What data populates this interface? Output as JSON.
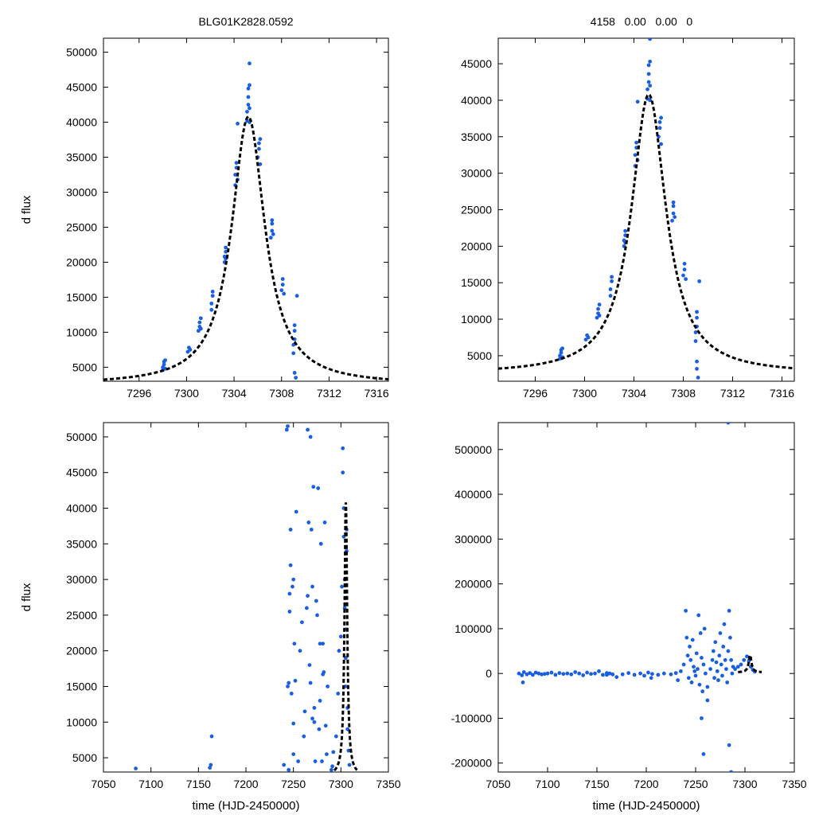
{
  "colors": {
    "points": "#1a5fe0",
    "model": "#000000"
  },
  "chart_data": [
    {
      "id": "top-left",
      "type": "scatter",
      "title": "BLG01K2828.0592",
      "xlabel": "",
      "ylabel": "d flux",
      "xlim": [
        7293,
        7317
      ],
      "ylim": [
        3000,
        52000
      ],
      "xticks": [
        7296,
        7300,
        7304,
        7308,
        7312,
        7316
      ],
      "yticks": [
        5000,
        10000,
        15000,
        20000,
        25000,
        30000,
        35000,
        40000,
        45000,
        50000
      ],
      "model": {
        "t0": 7305.2,
        "peak": 40800,
        "base": 2500,
        "width": 1.7,
        "x_range": [
          7293,
          7317
        ]
      },
      "x": [
        7298.0,
        7298.0,
        7298.1,
        7298.1,
        7298.2,
        7298.2,
        7300.1,
        7300.2,
        7300.3,
        7301.0,
        7301.1,
        7301.1,
        7301.2,
        7301.2,
        7302.1,
        7302.1,
        7302.2,
        7302.2,
        7303.2,
        7303.2,
        7303.3,
        7303.3,
        7303.3,
        7304.1,
        7304.1,
        7304.2,
        7304.2,
        7304.3,
        7304.3,
        7305.1,
        7305.1,
        7305.2,
        7305.2,
        7305.2,
        7305.3,
        7305.3,
        7305.3,
        7305.3,
        7306.0,
        7306.1,
        7306.1,
        7306.2,
        7306.2,
        7307.1,
        7307.2,
        7307.2,
        7307.2,
        7307.3,
        7308.0,
        7308.1,
        7308.1,
        7308.2,
        7309.0,
        7309.0,
        7309.1,
        7309.1,
        7309.1,
        7309.2,
        7309.3,
        7309.1
      ],
      "y": [
        4600,
        5000,
        5400,
        5800,
        6000,
        4800,
        7200,
        7800,
        7500,
        10200,
        10800,
        11400,
        12000,
        10500,
        13200,
        14100,
        15200,
        15800,
        20000,
        20800,
        21500,
        22100,
        20500,
        31000,
        32500,
        33500,
        34200,
        39800,
        31800,
        40200,
        41500,
        42500,
        43600,
        44800,
        45300,
        48400,
        40000,
        42000,
        35000,
        36200,
        37000,
        37600,
        34000,
        23500,
        24500,
        25500,
        26000,
        24000,
        16000,
        16800,
        17600,
        15500,
        7000,
        8200,
        9000,
        10200,
        11000,
        3500,
        15200,
        4200
      ]
    },
    {
      "id": "top-right",
      "type": "scatter",
      "title": "4158   0.00   0.00   0",
      "xlabel": "",
      "ylabel": "",
      "xlim": [
        7293,
        7317
      ],
      "ylim": [
        1500,
        48500
      ],
      "xticks": [
        7296,
        7300,
        7304,
        7308,
        7312,
        7316
      ],
      "yticks": [
        5000,
        10000,
        15000,
        20000,
        25000,
        30000,
        35000,
        40000,
        45000
      ],
      "model": {
        "t0": 7305.2,
        "peak": 40800,
        "base": 2500,
        "width": 1.7,
        "x_range": [
          7293,
          7317
        ]
      },
      "x": [
        7298.0,
        7298.0,
        7298.1,
        7298.1,
        7298.2,
        7298.2,
        7300.1,
        7300.2,
        7300.3,
        7301.0,
        7301.1,
        7301.1,
        7301.2,
        7301.2,
        7302.1,
        7302.1,
        7302.2,
        7302.2,
        7303.2,
        7303.2,
        7303.3,
        7303.3,
        7303.3,
        7304.1,
        7304.1,
        7304.2,
        7304.2,
        7304.3,
        7304.3,
        7305.1,
        7305.1,
        7305.2,
        7305.2,
        7305.2,
        7305.3,
        7305.3,
        7305.3,
        7305.3,
        7306.0,
        7306.1,
        7306.1,
        7306.2,
        7306.2,
        7307.1,
        7307.2,
        7307.2,
        7307.2,
        7307.3,
        7308.0,
        7308.1,
        7308.1,
        7308.2,
        7309.0,
        7309.0,
        7309.1,
        7309.1,
        7309.1,
        7309.2,
        7309.3,
        7309.1,
        7309.1
      ],
      "y": [
        4600,
        5000,
        5400,
        5800,
        6000,
        4800,
        7200,
        7800,
        7500,
        10200,
        10800,
        11400,
        12000,
        10500,
        13200,
        14100,
        15200,
        15800,
        20000,
        20800,
        21500,
        22100,
        20500,
        31000,
        32500,
        33500,
        34200,
        39800,
        31800,
        40200,
        41500,
        42500,
        43600,
        44800,
        45300,
        48400,
        40000,
        42000,
        35000,
        36200,
        37000,
        37600,
        34000,
        23500,
        24500,
        25500,
        26000,
        24000,
        16000,
        16800,
        17600,
        15500,
        7000,
        8200,
        9000,
        10200,
        11000,
        2000,
        15200,
        4200,
        3200
      ]
    },
    {
      "id": "bottom-left",
      "type": "scatter",
      "title": "",
      "xlabel": "time (HJD-2450000)",
      "ylabel": "d flux",
      "xlim": [
        7050,
        7350
      ],
      "ylim": [
        3000,
        52000
      ],
      "xticks": [
        7050,
        7100,
        7150,
        7200,
        7250,
        7300,
        7350
      ],
      "yticks": [
        5000,
        10000,
        15000,
        20000,
        25000,
        30000,
        35000,
        40000,
        45000,
        50000
      ],
      "model": {
        "t0": 7305.2,
        "peak": 40800,
        "base": 2500,
        "width": 1.7,
        "x_range": [
          7293,
          7317
        ]
      },
      "x": [
        7084,
        7162,
        7163,
        7164,
        7240,
        7243,
        7244,
        7244,
        7245,
        7245,
        7246,
        7246,
        7247,
        7247,
        7248,
        7249,
        7250,
        7250,
        7251,
        7252,
        7253,
        7255,
        7257,
        7259,
        7261,
        7262,
        7264,
        7265,
        7266,
        7267,
        7268,
        7269,
        7270,
        7270,
        7271,
        7272,
        7273,
        7274,
        7275,
        7276,
        7277,
        7278,
        7279,
        7280,
        7281,
        7282,
        7283,
        7284,
        7285,
        7286,
        7250,
        7265,
        7268,
        7272,
        7278,
        7281,
        7290,
        7291,
        7292,
        7295,
        7297,
        7298,
        7300,
        7301,
        7302,
        7302,
        7303,
        7303,
        7304,
        7304,
        7305,
        7305,
        7305,
        7306,
        7306,
        7307,
        7307,
        7308,
        7309
      ],
      "y": [
        3500,
        3600,
        4000,
        8000,
        4000,
        51000,
        51500,
        15000,
        15500,
        3300,
        28000,
        25500,
        37000,
        32000,
        14000,
        29000,
        30000,
        5500,
        21000,
        15800,
        39500,
        4500,
        20000,
        24000,
        8000,
        11500,
        26000,
        51000,
        38000,
        18000,
        50000,
        37000,
        29000,
        10500,
        43000,
        12000,
        4500,
        27000,
        25000,
        42800,
        9000,
        21000,
        35000,
        4500,
        21000,
        17000,
        38000,
        9500,
        5500,
        15000,
        9800,
        27700,
        15500,
        10000,
        13000,
        16700,
        3300,
        3800,
        5800,
        8000,
        14000,
        20000,
        22000,
        29000,
        45000,
        48400,
        40000,
        36000,
        30000,
        26000,
        23000,
        19000,
        15000,
        37000,
        34000,
        12000,
        9000,
        6000,
        4000
      ]
    },
    {
      "id": "bottom-right",
      "type": "scatter",
      "title": "",
      "xlabel": "time (HJD-2450000)",
      "ylabel": "",
      "xlim": [
        7050,
        7350
      ],
      "ylim": [
        -220000,
        560000
      ],
      "xticks": [
        7050,
        7100,
        7150,
        7200,
        7250,
        7300,
        7350
      ],
      "yticks": [
        -200000,
        -100000,
        0,
        100000,
        200000,
        300000,
        400000,
        500000
      ],
      "model": {
        "t0": 7305.2,
        "peak": 40800,
        "base": 2500,
        "width": 1.7,
        "x_range": [
          7293,
          7317
        ]
      },
      "x": [
        7071,
        7074,
        7076,
        7079,
        7082,
        7085,
        7088,
        7091,
        7094,
        7097,
        7100,
        7104,
        7108,
        7112,
        7116,
        7120,
        7124,
        7128,
        7132,
        7136,
        7140,
        7144,
        7148,
        7152,
        7156,
        7160,
        7163,
        7166,
        7170,
        7176,
        7182,
        7188,
        7194,
        7198,
        7202,
        7206,
        7212,
        7218,
        7225,
        7230,
        7232,
        7235,
        7238,
        7240,
        7241,
        7242,
        7243,
        7244,
        7245,
        7246,
        7247,
        7248,
        7249,
        7250,
        7251,
        7252,
        7253,
        7254,
        7255,
        7256,
        7257,
        7258,
        7259,
        7260,
        7262,
        7265,
        7267,
        7268,
        7269,
        7270,
        7271,
        7272,
        7273,
        7274,
        7275,
        7276,
        7277,
        7278,
        7279,
        7280,
        7281,
        7282,
        7283,
        7284,
        7285,
        7286,
        7287,
        7288,
        7290,
        7293,
        7296,
        7299,
        7302,
        7304,
        7306,
        7308,
        7310,
        7075,
        7160,
        7205,
        7258,
        7256,
        7283,
        7284,
        7262,
        7286
      ],
      "y": [
        0,
        -4000,
        3000,
        -2000,
        1000,
        -3000,
        2000,
        0,
        -2000,
        -1000,
        0,
        2000,
        -3000,
        1000,
        -1000,
        0,
        -2000,
        3000,
        0,
        -4000,
        2000,
        -1000,
        0,
        5000,
        -3000,
        1000,
        0,
        -2000,
        -8000,
        -2000,
        1000,
        -3000,
        0,
        -5000,
        2000,
        -1000,
        -3000,
        0,
        -2000,
        1000,
        -15000,
        5000,
        20000,
        140000,
        80000,
        40000,
        -10000,
        60000,
        30000,
        -20000,
        75000,
        15000,
        5000,
        -5000,
        45000,
        10000,
        130000,
        -25000,
        90000,
        35000,
        -40000,
        20000,
        100000,
        0,
        -30000,
        10000,
        30000,
        50000,
        -10000,
        70000,
        25000,
        5000,
        -15000,
        40000,
        90000,
        20000,
        -5000,
        60000,
        110000,
        30000,
        10000,
        -20000,
        50000,
        140000,
        80000,
        30000,
        0,
        15000,
        10000,
        15000,
        20000,
        30000,
        38000,
        28000,
        15000,
        8000,
        4000,
        -20000,
        -3000,
        -10000,
        -180000,
        -100000,
        560000,
        -160000,
        -60000,
        -220000
      ]
    }
  ]
}
